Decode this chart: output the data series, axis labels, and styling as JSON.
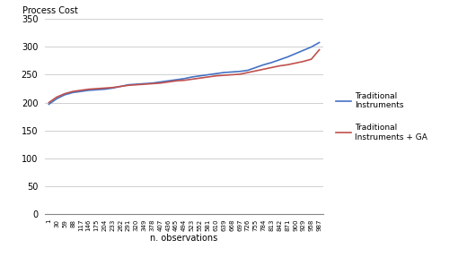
{
  "title": "",
  "ylabel": "Process Cost",
  "xlabel": "n. observations",
  "ylim": [
    0,
    350
  ],
  "yticks": [
    0,
    50,
    100,
    150,
    200,
    250,
    300,
    350
  ],
  "xtick_labels": [
    "1",
    "30",
    "59",
    "88",
    "117",
    "146",
    "175",
    "204",
    "233",
    "262",
    "291",
    "320",
    "349",
    "378",
    "407",
    "436",
    "465",
    "494",
    "523",
    "552",
    "581",
    "610",
    "639",
    "668",
    "697",
    "726",
    "755",
    "784",
    "813",
    "842",
    "871",
    "900",
    "929",
    "958",
    "987"
  ],
  "line1_color": "#4472C4",
  "line2_color": "#C0504D",
  "legend1": "Traditional\nInstruments",
  "legend2": "Traditional\nInstruments + GA",
  "background_color": "#ffffff",
  "grid_color": "#c8c8c8",
  "blue_y": [
    197,
    207,
    214,
    218,
    220,
    222,
    223,
    224,
    226,
    229,
    232,
    233,
    234,
    235,
    237,
    239,
    241,
    243,
    246,
    248,
    250,
    252,
    254,
    255,
    256,
    258,
    263,
    268,
    272,
    277,
    282,
    288,
    294,
    300,
    308
  ],
  "red_y": [
    200,
    210,
    216,
    220,
    222,
    224,
    225,
    226,
    227,
    229,
    231,
    232,
    233,
    234,
    235,
    237,
    239,
    240,
    242,
    244,
    246,
    248,
    249,
    250,
    251,
    254,
    257,
    260,
    263,
    266,
    268,
    271,
    274,
    278,
    295
  ]
}
